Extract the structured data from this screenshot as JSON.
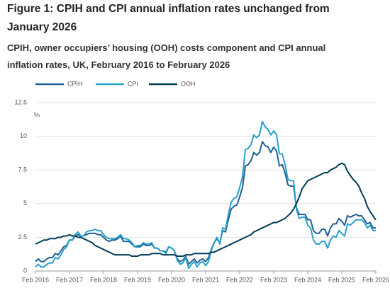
{
  "chart_data": {
    "type": "line",
    "title": "Figure 1: CPIH and CPI annual inflation rates unchanged from January 2026",
    "subtitle": "CPIH, owner occupiers’ housing (OOH) costs component and CPI annual inflation rates, UK, February 2016 to February 2026",
    "y_label": "%",
    "categories": [
      "Feb 2016",
      null,
      null,
      null,
      null,
      null,
      null,
      null,
      null,
      null,
      null,
      null,
      "Feb 2017",
      null,
      null,
      null,
      null,
      null,
      null,
      null,
      null,
      null,
      null,
      null,
      "Feb 2018",
      null,
      null,
      null,
      null,
      null,
      null,
      null,
      null,
      null,
      null,
      null,
      "Feb 2019",
      null,
      null,
      null,
      null,
      null,
      null,
      null,
      null,
      null,
      null,
      null,
      "Feb 2020",
      null,
      null,
      null,
      null,
      null,
      null,
      null,
      null,
      null,
      null,
      null,
      "Feb 2021",
      null,
      null,
      null,
      null,
      null,
      null,
      null,
      null,
      null,
      null,
      null,
      "Feb 2022",
      null,
      null,
      null,
      null,
      null,
      null,
      null,
      null,
      null,
      null,
      null,
      "Feb 2023",
      null,
      null,
      null,
      null,
      null,
      null,
      null,
      null,
      null,
      null,
      null,
      "Feb 2024",
      null,
      null,
      null,
      null,
      null,
      null,
      null,
      null,
      null,
      null,
      null,
      "Feb 2025",
      null,
      null,
      null,
      null,
      null,
      null,
      null,
      null,
      null,
      null,
      null,
      "Feb 2026"
    ],
    "series": [
      {
        "name": "CPIH",
        "color": "#206095",
        "values": [
          0.7,
          0.9,
          0.7,
          0.7,
          0.9,
          1.0,
          1.0,
          1.3,
          1.2,
          1.5,
          1.8,
          1.9,
          2.3,
          2.3,
          2.6,
          2.7,
          2.6,
          2.6,
          2.7,
          2.8,
          2.8,
          2.8,
          2.7,
          2.7,
          2.5,
          2.3,
          2.2,
          2.3,
          2.3,
          2.4,
          2.6,
          2.2,
          2.2,
          2.2,
          2.0,
          1.8,
          1.8,
          1.8,
          2.0,
          1.9,
          1.9,
          2.0,
          1.7,
          1.7,
          1.5,
          1.5,
          1.4,
          1.8,
          1.7,
          1.5,
          0.9,
          0.7,
          0.8,
          1.1,
          0.5,
          0.7,
          0.9,
          0.6,
          0.8,
          0.9,
          0.7,
          1.0,
          1.6,
          2.1,
          2.4,
          2.1,
          3.0,
          2.9,
          3.8,
          4.6,
          4.8,
          4.9,
          5.5,
          6.2,
          7.8,
          7.9,
          8.2,
          8.8,
          8.6,
          8.8,
          9.6,
          9.3,
          9.2,
          8.8,
          9.2,
          8.9,
          7.8,
          7.9,
          7.3,
          6.4,
          6.3,
          6.3,
          4.7,
          4.2,
          4.2,
          4.2,
          3.8,
          3.8,
          3.0,
          2.8,
          2.8,
          3.1,
          3.1,
          2.6,
          3.2,
          3.5,
          3.5,
          3.9,
          3.7,
          3.4,
          4.1,
          4.0,
          4.1,
          4.2,
          4.1,
          4.1,
          3.8,
          3.5,
          3.6,
          3.2,
          3.2
        ]
      },
      {
        "name": "CPI",
        "color": "#27a0cc",
        "values": [
          0.3,
          0.5,
          0.3,
          0.3,
          0.5,
          0.6,
          0.6,
          1.0,
          0.9,
          1.2,
          1.6,
          1.8,
          2.3,
          2.3,
          2.7,
          2.9,
          2.6,
          2.6,
          2.9,
          3.0,
          3.0,
          3.1,
          3.0,
          3.0,
          2.7,
          2.5,
          2.4,
          2.4,
          2.4,
          2.5,
          2.7,
          2.4,
          2.4,
          2.3,
          2.1,
          1.8,
          1.9,
          1.9,
          2.1,
          2.0,
          2.0,
          2.1,
          1.7,
          1.7,
          1.5,
          1.5,
          1.3,
          1.8,
          1.7,
          1.5,
          0.8,
          0.5,
          0.6,
          1.0,
          0.2,
          0.5,
          0.7,
          0.3,
          0.6,
          0.7,
          0.4,
          0.7,
          1.5,
          2.1,
          2.5,
          2.0,
          3.2,
          3.1,
          4.2,
          5.1,
          5.4,
          5.5,
          6.2,
          7.0,
          9.0,
          9.1,
          9.4,
          10.1,
          9.9,
          10.1,
          11.1,
          10.7,
          10.5,
          10.1,
          10.4,
          10.1,
          8.7,
          8.7,
          7.9,
          6.8,
          6.7,
          6.7,
          4.6,
          3.9,
          4.0,
          4.0,
          3.4,
          3.2,
          2.3,
          2.0,
          2.0,
          2.2,
          2.2,
          1.7,
          2.3,
          2.6,
          2.5,
          3.0,
          2.8,
          2.6,
          3.5,
          3.4,
          3.6,
          3.8,
          3.8,
          3.8,
          3.6,
          3.2,
          3.4,
          3.0,
          3.0
        ]
      },
      {
        "name": "OOH",
        "color": "#003c57",
        "values": [
          2.0,
          2.1,
          2.2,
          2.3,
          2.3,
          2.4,
          2.4,
          2.4,
          2.5,
          2.5,
          2.6,
          2.6,
          2.7,
          2.6,
          2.6,
          2.5,
          2.5,
          2.4,
          2.3,
          2.2,
          2.1,
          1.9,
          1.8,
          1.7,
          1.6,
          1.5,
          1.4,
          1.3,
          1.2,
          1.2,
          1.2,
          1.2,
          1.2,
          1.2,
          1.1,
          1.1,
          1.1,
          1.2,
          1.2,
          1.2,
          1.2,
          1.3,
          1.3,
          1.3,
          1.3,
          1.2,
          1.2,
          1.2,
          1.2,
          1.2,
          1.1,
          1.1,
          1.1,
          1.2,
          1.2,
          1.2,
          1.3,
          1.3,
          1.3,
          1.3,
          1.3,
          1.3,
          1.4,
          1.4,
          1.5,
          1.6,
          1.7,
          1.8,
          1.9,
          2.0,
          2.1,
          2.2,
          2.3,
          2.4,
          2.5,
          2.6,
          2.7,
          2.9,
          3.0,
          3.1,
          3.2,
          3.3,
          3.4,
          3.5,
          3.6,
          3.6,
          3.7,
          3.8,
          3.9,
          4.1,
          4.3,
          4.6,
          5.0,
          5.5,
          6.1,
          6.4,
          6.7,
          6.8,
          6.9,
          7.0,
          7.1,
          7.2,
          7.3,
          7.3,
          7.5,
          7.6,
          7.7,
          7.9,
          8.0,
          7.9,
          7.4,
          7.1,
          6.8,
          6.6,
          6.3,
          5.8,
          5.4,
          4.8,
          4.4,
          4.1,
          3.8
        ]
      }
    ],
    "ylim": [
      0,
      12.5
    ],
    "yticks": [
      0,
      2.5,
      5,
      7.5,
      10,
      12.5
    ],
    "grid": true
  }
}
